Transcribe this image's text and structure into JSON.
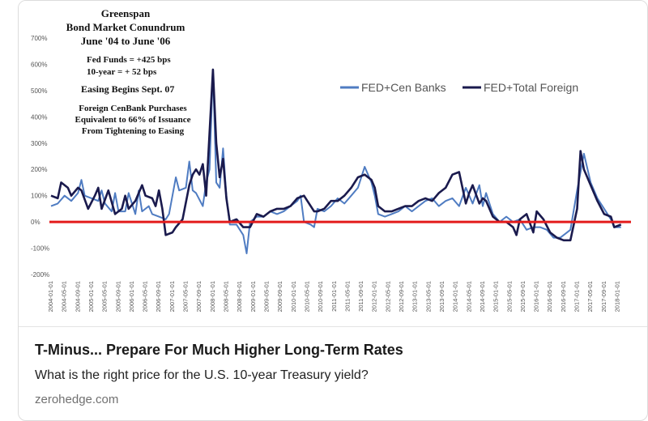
{
  "card": {
    "title": "T-Minus... Prepare For Much Higher Long-Term Rates",
    "subtitle": "What is the right price for the U.S. 10-year Treasury yield?",
    "domain": "zerohedge.com"
  },
  "chart_data": {
    "type": "line",
    "title": "",
    "xlabel": "",
    "ylabel": "",
    "ylim": [
      -200,
      700
    ],
    "yticks": [
      "700%",
      "600%",
      "500%",
      "400%",
      "300%",
      "200%",
      "100%",
      "0%",
      "-100%",
      "-200%"
    ],
    "ytick_values": [
      700,
      600,
      500,
      400,
      300,
      200,
      100,
      0,
      -100,
      -200
    ],
    "xtick_labels": [
      "2004-01-01",
      "2004-05-01",
      "2004-09-01",
      "2005-01-01",
      "2005-05-01",
      "2005-09-01",
      "2006-01-01",
      "2006-05-01",
      "2006-09-01",
      "2007-01-01",
      "2007-05-01",
      "2007-09-01",
      "2008-01-01",
      "2008-05-01",
      "2008-09-01",
      "2009-01-01",
      "2009-05-01",
      "2009-09-01",
      "2010-01-01",
      "2010-05-01",
      "2010-09-01",
      "2011-01-01",
      "2011-05-01",
      "2011-09-01",
      "2012-01-01",
      "2012-05-01",
      "2012-09-01",
      "2013-01-01",
      "2013-05-01",
      "2013-09-01",
      "2014-01-01",
      "2014-05-01",
      "2014-09-01",
      "2015-01-01",
      "2015-05-01",
      "2015-09-01",
      "2016-01-01",
      "2016-05-01",
      "2016-09-01",
      "2017-01-01",
      "2017-05-01",
      "2017-09-01",
      "2018-01-01"
    ],
    "x_range_months": [
      0,
      171
    ],
    "series": [
      {
        "name": "FED+Cen Banks",
        "color": "#4f7cc2",
        "points": [
          [
            0,
            60
          ],
          [
            2,
            70
          ],
          [
            4,
            100
          ],
          [
            6,
            80
          ],
          [
            8,
            110
          ],
          [
            9,
            160
          ],
          [
            10,
            100
          ],
          [
            12,
            90
          ],
          [
            14,
            80
          ],
          [
            15,
            120
          ],
          [
            16,
            70
          ],
          [
            18,
            40
          ],
          [
            19,
            110
          ],
          [
            20,
            40
          ],
          [
            22,
            40
          ],
          [
            23,
            110
          ],
          [
            25,
            30
          ],
          [
            26,
            120
          ],
          [
            27,
            40
          ],
          [
            29,
            60
          ],
          [
            30,
            30
          ],
          [
            32,
            20
          ],
          [
            34,
            10
          ],
          [
            35,
            30
          ],
          [
            37,
            170
          ],
          [
            38,
            120
          ],
          [
            40,
            130
          ],
          [
            41,
            230
          ],
          [
            42,
            120
          ],
          [
            43,
            110
          ],
          [
            45,
            60
          ],
          [
            46,
            150
          ],
          [
            47,
            200
          ],
          [
            48,
            580
          ],
          [
            49,
            150
          ],
          [
            50,
            130
          ],
          [
            51,
            280
          ],
          [
            52,
            100
          ],
          [
            53,
            -10
          ],
          [
            55,
            -10
          ],
          [
            57,
            -50
          ],
          [
            58,
            -120
          ],
          [
            59,
            0
          ],
          [
            61,
            20
          ],
          [
            63,
            20
          ],
          [
            65,
            40
          ],
          [
            67,
            30
          ],
          [
            69,
            40
          ],
          [
            71,
            60
          ],
          [
            73,
            80
          ],
          [
            74,
            100
          ],
          [
            75,
            0
          ],
          [
            77,
            -10
          ],
          [
            78,
            -20
          ],
          [
            79,
            50
          ],
          [
            81,
            40
          ],
          [
            83,
            60
          ],
          [
            85,
            90
          ],
          [
            87,
            70
          ],
          [
            89,
            100
          ],
          [
            91,
            130
          ],
          [
            93,
            210
          ],
          [
            95,
            150
          ],
          [
            96,
            100
          ],
          [
            97,
            30
          ],
          [
            99,
            20
          ],
          [
            101,
            30
          ],
          [
            103,
            40
          ],
          [
            105,
            60
          ],
          [
            107,
            40
          ],
          [
            109,
            60
          ],
          [
            111,
            80
          ],
          [
            113,
            90
          ],
          [
            115,
            60
          ],
          [
            117,
            80
          ],
          [
            119,
            90
          ],
          [
            121,
            60
          ],
          [
            123,
            130
          ],
          [
            125,
            70
          ],
          [
            127,
            140
          ],
          [
            128,
            60
          ],
          [
            129,
            110
          ],
          [
            131,
            30
          ],
          [
            133,
            0
          ],
          [
            135,
            20
          ],
          [
            137,
            0
          ],
          [
            139,
            10
          ],
          [
            141,
            -30
          ],
          [
            143,
            -20
          ],
          [
            145,
            -20
          ],
          [
            147,
            -30
          ],
          [
            149,
            -60
          ],
          [
            151,
            -60
          ],
          [
            153,
            -40
          ],
          [
            154,
            -30
          ],
          [
            156,
            120
          ],
          [
            158,
            260
          ],
          [
            160,
            150
          ],
          [
            162,
            90
          ],
          [
            164,
            50
          ],
          [
            166,
            10
          ],
          [
            167,
            -20
          ],
          [
            169,
            -20
          ]
        ]
      },
      {
        "name": "FED+Total Foreign",
        "color": "#1a1a4d",
        "points": [
          [
            0,
            100
          ],
          [
            2,
            90
          ],
          [
            3,
            150
          ],
          [
            5,
            130
          ],
          [
            6,
            100
          ],
          [
            8,
            130
          ],
          [
            9,
            120
          ],
          [
            11,
            50
          ],
          [
            13,
            100
          ],
          [
            14,
            130
          ],
          [
            15,
            50
          ],
          [
            17,
            120
          ],
          [
            19,
            30
          ],
          [
            21,
            50
          ],
          [
            22,
            100
          ],
          [
            23,
            50
          ],
          [
            25,
            80
          ],
          [
            27,
            140
          ],
          [
            28,
            100
          ],
          [
            30,
            90
          ],
          [
            31,
            60
          ],
          [
            32,
            120
          ],
          [
            33,
            50
          ],
          [
            34,
            -50
          ],
          [
            36,
            -40
          ],
          [
            37,
            -20
          ],
          [
            39,
            10
          ],
          [
            41,
            140
          ],
          [
            42,
            180
          ],
          [
            43,
            200
          ],
          [
            44,
            180
          ],
          [
            45,
            220
          ],
          [
            46,
            100
          ],
          [
            47,
            340
          ],
          [
            48,
            580
          ],
          [
            49,
            300
          ],
          [
            50,
            170
          ],
          [
            51,
            240
          ],
          [
            52,
            90
          ],
          [
            53,
            0
          ],
          [
            55,
            10
          ],
          [
            57,
            -20
          ],
          [
            59,
            -20
          ],
          [
            61,
            30
          ],
          [
            63,
            20
          ],
          [
            65,
            40
          ],
          [
            67,
            50
          ],
          [
            69,
            50
          ],
          [
            71,
            60
          ],
          [
            73,
            90
          ],
          [
            75,
            100
          ],
          [
            77,
            60
          ],
          [
            78,
            40
          ],
          [
            79,
            40
          ],
          [
            81,
            50
          ],
          [
            83,
            80
          ],
          [
            85,
            80
          ],
          [
            87,
            100
          ],
          [
            89,
            130
          ],
          [
            91,
            170
          ],
          [
            93,
            180
          ],
          [
            95,
            160
          ],
          [
            96,
            130
          ],
          [
            97,
            60
          ],
          [
            99,
            40
          ],
          [
            101,
            40
          ],
          [
            103,
            50
          ],
          [
            105,
            60
          ],
          [
            107,
            60
          ],
          [
            109,
            80
          ],
          [
            111,
            90
          ],
          [
            113,
            80
          ],
          [
            115,
            110
          ],
          [
            117,
            130
          ],
          [
            119,
            180
          ],
          [
            121,
            190
          ],
          [
            123,
            70
          ],
          [
            124,
            110
          ],
          [
            125,
            140
          ],
          [
            127,
            70
          ],
          [
            128,
            90
          ],
          [
            129,
            80
          ],
          [
            131,
            20
          ],
          [
            133,
            0
          ],
          [
            135,
            0
          ],
          [
            137,
            -20
          ],
          [
            138,
            -50
          ],
          [
            139,
            10
          ],
          [
            141,
            30
          ],
          [
            143,
            -40
          ],
          [
            144,
            40
          ],
          [
            146,
            10
          ],
          [
            148,
            -40
          ],
          [
            150,
            -60
          ],
          [
            152,
            -70
          ],
          [
            154,
            -70
          ],
          [
            156,
            50
          ],
          [
            157,
            270
          ],
          [
            158,
            200
          ],
          [
            160,
            140
          ],
          [
            162,
            80
          ],
          [
            164,
            30
          ],
          [
            166,
            20
          ],
          [
            167,
            -20
          ],
          [
            169,
            -10
          ]
        ]
      }
    ],
    "reference_line": {
      "value": 0,
      "color": "#e31b1b"
    },
    "legend": {
      "placement": "top-right"
    },
    "grid": false,
    "annotations": [
      "Greenspan",
      "Bond Market Conundrum",
      "June '04 to June '06",
      "Fed Funds  = +425 bps",
      "10-year      = + 52  bps",
      "Easing Begins Sept. 07",
      "Foreign CenBank Purchases",
      "Equivalent  to 66% of Issuance",
      "From  Tightening to Easing"
    ]
  }
}
